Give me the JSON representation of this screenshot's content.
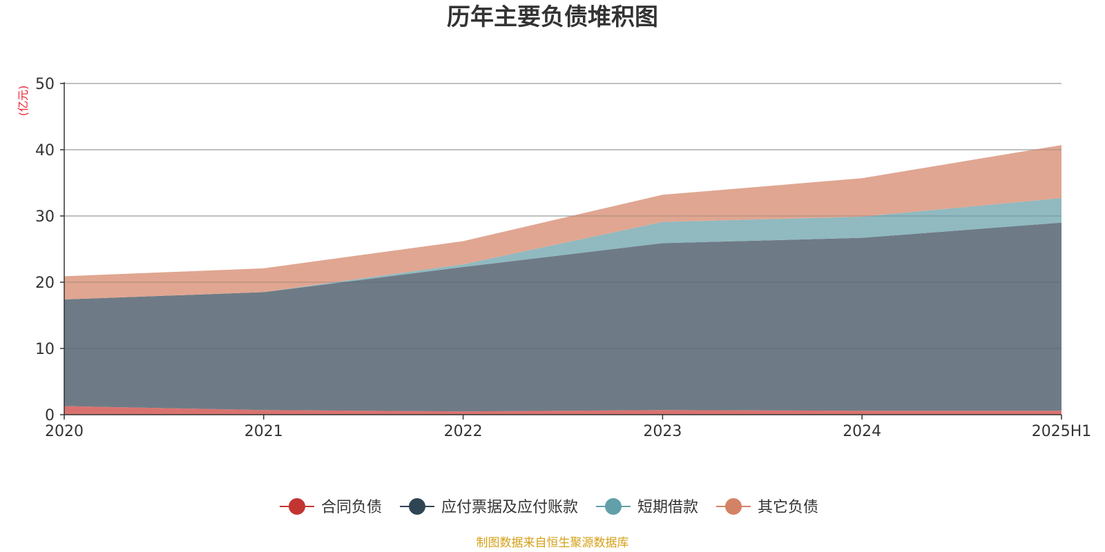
{
  "chart_data": {
    "type": "area",
    "stacked": true,
    "title": "历年主要负债堆积图",
    "unit_label": "(亿元)",
    "categories": [
      "2020",
      "2021",
      "2022",
      "2023",
      "2024",
      "2025H1"
    ],
    "ylim": [
      0,
      50
    ],
    "yticks": [
      "0",
      "10",
      "20",
      "30",
      "40",
      "50"
    ],
    "grid": true,
    "legend_position": "bottom",
    "series": [
      {
        "name": "合同负债",
        "color": "#c23531",
        "fill": "#d9726f",
        "values": [
          1.3,
          0.7,
          0.5,
          0.7,
          0.6,
          0.6
        ]
      },
      {
        "name": "应付票据及应付账款",
        "color": "#2f4554",
        "fill": "#6e7b86",
        "values": [
          16.1,
          17.8,
          21.8,
          25.2,
          26.1,
          28.4
        ]
      },
      {
        "name": "短期借款",
        "color": "#61a0a8",
        "fill": "#90b9c0",
        "values": [
          0.0,
          0.0,
          0.4,
          3.2,
          3.2,
          3.7
        ]
      },
      {
        "name": "其它负债",
        "color": "#d48265",
        "fill": "#e0a691",
        "values": [
          3.5,
          3.6,
          3.5,
          4.1,
          5.8,
          8.0
        ]
      }
    ],
    "source": "制图数据来自恒生聚源数据库"
  }
}
